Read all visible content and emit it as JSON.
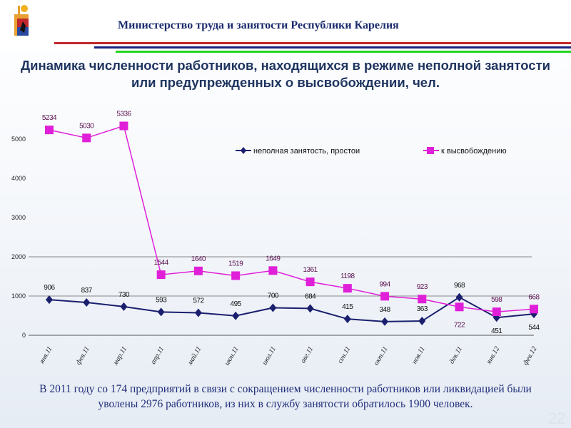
{
  "header": {
    "ministry": "Министерство труда и занятости Республики Карелия",
    "logo_icon": "karelia-coat-of-arms-icon",
    "stripe_colors": [
      "#c0282d",
      "#1a237e",
      "#22d622"
    ]
  },
  "slide_title": "Динамика численности работников, находящихся в режиме неполной занятости или предупрежденных о высвобождении, чел.",
  "chart_data": {
    "type": "line",
    "categories": [
      "янв.11",
      "фев.11",
      "мар.11",
      "апр.11",
      "май.11",
      "июн.11",
      "июл.11",
      "авг.11",
      "сен.11",
      "окт.11",
      "ноя.11",
      "дек.11",
      "янв.12",
      "фев.12"
    ],
    "series": [
      {
        "name": "неполная занятость, простои",
        "color": "#1a1f6e",
        "marker": "diamond",
        "values": [
          906,
          837,
          730,
          593,
          572,
          495,
          700,
          684,
          415,
          348,
          363,
          968,
          451,
          544
        ]
      },
      {
        "name": "к высвобождению",
        "color": "#e020d8",
        "marker": "square",
        "values": [
          5234,
          5030,
          5336,
          1544,
          1640,
          1519,
          1649,
          1361,
          1198,
          994,
          923,
          722,
          598,
          668
        ]
      }
    ],
    "yticks": [
      "0",
      "1000",
      "2000",
      "3000",
      "4000",
      "5000"
    ],
    "ylim": [
      0,
      5500
    ],
    "grid": "horizontal at 1000 and 2000",
    "legend": "top-right",
    "data_labels": true
  },
  "footer_text": "В 2011 году со 174 предприятий в связи с сокращением численности работников или ликвидацией были уволены 2976 работников, из них в службу занятости обратилось 1900 человек.",
  "page_number": "22"
}
